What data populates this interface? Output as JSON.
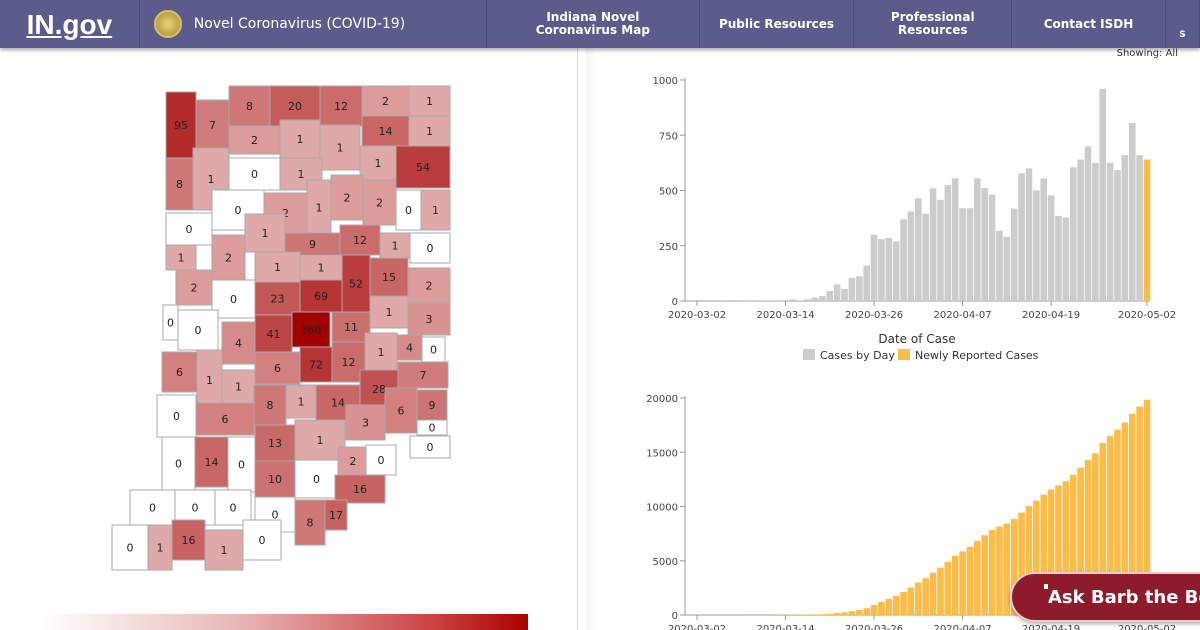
{
  "header": {
    "logo": "IN.gov",
    "site_title": "Novel Coronavirus (COVID-19)",
    "nav": [
      "Indiana Novel Coronavirus Map",
      "Public Resources",
      "Professional Resources",
      "Contact ISDH"
    ],
    "nav_extra": "S"
  },
  "showing": "Showing: All",
  "map": {
    "counties": [
      95,
      7,
      8,
      20,
      12,
      2,
      1,
      14,
      1,
      2,
      1,
      1,
      1,
      54,
      8,
      1,
      0,
      1,
      2,
      2,
      1,
      0,
      1,
      0,
      2,
      0,
      1,
      9,
      12,
      1,
      0,
      1,
      2,
      1,
      1,
      2,
      52,
      15,
      2,
      0,
      23,
      69,
      0,
      0,
      1,
      3,
      41,
      360,
      11,
      4,
      1,
      4,
      0,
      6,
      1,
      1,
      6,
      72,
      12,
      28,
      7,
      0,
      6,
      8,
      1,
      14,
      6,
      9,
      0,
      3,
      0,
      13,
      1,
      14,
      0,
      0,
      2,
      0,
      0,
      10,
      16,
      0,
      0,
      0,
      17,
      8,
      0,
      0,
      1,
      16,
      1,
      0
    ],
    "color_low": "#ffffff",
    "color_high": "#a30000"
  },
  "chart_data": [
    {
      "type": "bar",
      "xlabel": "Date of Case",
      "ylim": [
        0,
        1000
      ],
      "yticks": [
        "0",
        "250",
        "500",
        "750",
        "1000"
      ],
      "xticks": [
        "2020-03-02",
        "2020-03-14",
        "2020-03-26",
        "2020-04-07",
        "2020-04-19",
        "2020-05-02"
      ],
      "start_date": "2020-03-02",
      "series": [
        {
          "name": "Cases by Day",
          "color": "#cccccc"
        },
        {
          "name": "Newly Reported Cases",
          "color": "#fbbd4a"
        }
      ],
      "values": [
        0,
        0,
        0,
        0,
        1,
        0,
        1,
        2,
        1,
        2,
        3,
        3,
        4,
        8,
        3,
        8,
        15,
        22,
        45,
        75,
        55,
        105,
        112,
        160,
        300,
        280,
        285,
        270,
        370,
        405,
        465,
        395,
        510,
        458,
        525,
        555,
        420,
        420,
        555,
        512,
        482,
        318,
        290,
        418,
        578,
        600,
        500,
        555,
        478,
        385,
        378,
        605,
        640,
        700,
        625,
        960,
        625,
        592,
        660,
        805,
        660,
        640
      ],
      "legend": "bottom"
    },
    {
      "type": "bar",
      "ylim": [
        0,
        20000
      ],
      "yticks": [
        "0",
        "5000",
        "10000",
        "15000",
        "20000"
      ],
      "xticks": [
        "2020-03-02",
        "2020-03-14",
        "2020-03-26",
        "2020-04-07",
        "2020-04-19",
        "2020-05-02"
      ],
      "color": "#fbbd4a",
      "values": [
        0,
        0,
        0,
        0,
        1,
        1,
        2,
        4,
        5,
        7,
        10,
        13,
        17,
        25,
        28,
        36,
        51,
        73,
        118,
        193,
        248,
        353,
        465,
        625,
        925,
        1205,
        1490,
        1760,
        2130,
        2535,
        3000,
        3395,
        3905,
        4363,
        4888,
        5443,
        5863,
        6283,
        6838,
        7350,
        7832,
        8150,
        8440,
        8858,
        9436,
        10036,
        10536,
        11091,
        11569,
        11954,
        12332,
        12937,
        13577,
        14277,
        14902,
        15862,
        16487,
        17079,
        17739,
        18544,
        19204,
        19844
      ]
    }
  ],
  "chatbot": {
    "label": "Ask Barb the Bot"
  }
}
